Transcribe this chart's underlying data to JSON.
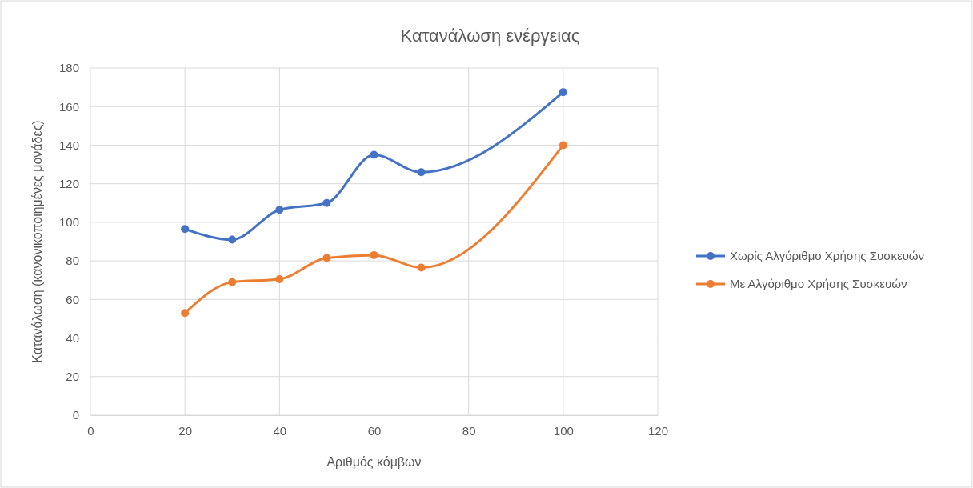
{
  "chart_data": {
    "type": "line",
    "title": "Κατανάλωση  ενέργειας",
    "xlabel": "Αριθμός κόμβων",
    "ylabel": "Κατανάλωση (κανονικοποιημένες μονάδες)",
    "x": [
      20,
      30,
      40,
      50,
      60,
      70,
      100
    ],
    "series": [
      {
        "name": "Χωρίς Αλγόριθμο Χρήσης Συσκευών",
        "color": "#4472c4",
        "values": [
          96.5,
          91,
          106.5,
          110,
          135,
          126,
          167.5
        ]
      },
      {
        "name": "Με Αλγόριθμο Χρήσης Συσκευών",
        "color": "#ed7d31",
        "values": [
          53,
          69,
          70.5,
          81.5,
          83,
          76.5,
          140
        ]
      }
    ],
    "xlim": [
      0,
      120
    ],
    "xticks": [
      0,
      20,
      40,
      60,
      80,
      100,
      120
    ],
    "ylim": [
      0,
      180
    ],
    "yticks": [
      0,
      20,
      40,
      60,
      80,
      100,
      120,
      140,
      160,
      180
    ],
    "grid": true,
    "legend": "right",
    "marker": "circle",
    "line_style": "solid"
  }
}
